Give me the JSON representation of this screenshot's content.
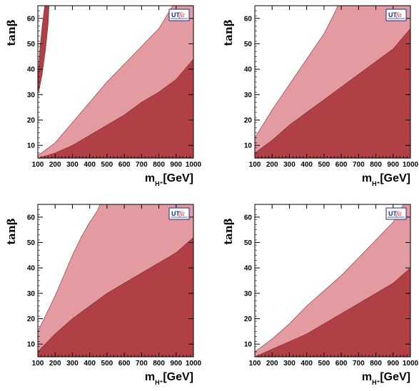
{
  "colors": {
    "light_region": "#e39aa0",
    "dark_region": "#b04046",
    "frame": "#000000",
    "logo_border": "#1a2f8c"
  },
  "logo": {
    "ut": "UT",
    "fit": "fit"
  },
  "chart_data": [
    {
      "type": "area",
      "title": "",
      "xlabel": {
        "main": "m",
        "sub": "H⁺",
        "unit": "[GeV]"
      },
      "ylabel": "tanβ",
      "xlim": [
        100,
        1000
      ],
      "ylim": [
        5,
        65
      ],
      "xticks": [
        "100",
        "200",
        "300",
        "400",
        "500",
        "600",
        "700",
        "800",
        "900",
        "1000"
      ],
      "yticks": [
        "10",
        "20",
        "30",
        "40",
        "50",
        "60"
      ],
      "regions": [
        {
          "name": "",
          "color": "light",
          "boundary": [
            [
              100,
              6
            ],
            [
              200,
              11
            ],
            [
              300,
              19
            ],
            [
              400,
              27
            ],
            [
              500,
              35
            ],
            [
              600,
              42
            ],
            [
              700,
              49
            ],
            [
              800,
              56
            ],
            [
              880,
              65
            ]
          ]
        },
        {
          "name": "",
          "color": "dark",
          "boundary": [
            [
              100,
              5
            ],
            [
              200,
              7
            ],
            [
              300,
              10
            ],
            [
              400,
              14
            ],
            [
              500,
              18
            ],
            [
              600,
              22
            ],
            [
              700,
              27
            ],
            [
              800,
              31
            ],
            [
              900,
              36
            ],
            [
              1000,
              44
            ]
          ]
        },
        {
          "name": "",
          "color": "dark_island",
          "upper_left": true,
          "boundary": [
            [
              100,
              35
            ],
            [
              110,
              47
            ],
            [
              125,
              57
            ],
            [
              140,
              65
            ],
            [
              165,
              65
            ],
            [
              160,
              58
            ],
            [
              145,
              48
            ],
            [
              125,
              38
            ],
            [
              105,
              31
            ]
          ]
        }
      ]
    },
    {
      "type": "area",
      "title": "",
      "xlabel": {
        "main": "m",
        "sub": "H⁺",
        "unit": "[GeV]"
      },
      "ylabel": "tanβ",
      "xlim": [
        100,
        1000
      ],
      "ylim": [
        5,
        65
      ],
      "xticks": [
        "100",
        "200",
        "300",
        "400",
        "500",
        "600",
        "700",
        "800",
        "900",
        "1000"
      ],
      "yticks": [
        "10",
        "20",
        "30",
        "40",
        "50",
        "60"
      ],
      "regions": [
        {
          "name": "",
          "color": "light",
          "boundary": [
            [
              100,
              13
            ],
            [
              200,
              24
            ],
            [
              300,
              34
            ],
            [
              400,
              44
            ],
            [
              500,
              54
            ],
            [
              560,
              62
            ],
            [
              580,
              65
            ]
          ]
        },
        {
          "name": "",
          "color": "dark",
          "boundary": [
            [
              100,
              7
            ],
            [
              200,
              12
            ],
            [
              300,
              18
            ],
            [
              400,
              23
            ],
            [
              500,
              28
            ],
            [
              600,
              33
            ],
            [
              700,
              38
            ],
            [
              800,
              43
            ],
            [
              900,
              48
            ],
            [
              1000,
              56
            ]
          ]
        }
      ]
    },
    {
      "type": "area",
      "title": "",
      "xlabel": {
        "main": "m",
        "sub": "H⁺",
        "unit": "[GeV]"
      },
      "ylabel": "tanβ",
      "xlim": [
        100,
        1000
      ],
      "ylim": [
        5,
        65
      ],
      "xticks": [
        "100",
        "200",
        "300",
        "400",
        "500",
        "600",
        "700",
        "800",
        "900",
        "1000"
      ],
      "yticks": [
        "10",
        "20",
        "30",
        "40",
        "50",
        "60"
      ],
      "regions": [
        {
          "name": "",
          "color": "light",
          "boundary": [
            [
              100,
              15
            ],
            [
              150,
              22
            ],
            [
              200,
              29
            ],
            [
              250,
              37
            ],
            [
              300,
              45
            ],
            [
              350,
              52
            ],
            [
              400,
              58
            ],
            [
              440,
              62
            ],
            [
              460,
              65
            ]
          ]
        },
        {
          "name": "",
          "color": "dark",
          "boundary": [
            [
              100,
              7
            ],
            [
              200,
              14
            ],
            [
              300,
              20
            ],
            [
              400,
              25
            ],
            [
              500,
              30
            ],
            [
              600,
              34
            ],
            [
              700,
              38
            ],
            [
              800,
              42
            ],
            [
              900,
              46
            ],
            [
              1000,
              52
            ]
          ]
        }
      ]
    },
    {
      "type": "area",
      "title": "",
      "xlabel": {
        "main": "m",
        "sub": "H⁺",
        "unit": "[GeV]"
      },
      "ylabel": "tanβ",
      "xlim": [
        100,
        1000
      ],
      "ylim": [
        5,
        65
      ],
      "xticks": [
        "100",
        "200",
        "300",
        "400",
        "500",
        "600",
        "700",
        "800",
        "900",
        "1000"
      ],
      "yticks": [
        "10",
        "20",
        "30",
        "40",
        "50",
        "60"
      ],
      "regions": [
        {
          "name": "",
          "color": "light",
          "boundary": [
            [
              100,
              7
            ],
            [
              200,
              12
            ],
            [
              300,
              18
            ],
            [
              400,
              25
            ],
            [
              500,
              31
            ],
            [
              600,
              37
            ],
            [
              700,
              44
            ],
            [
              800,
              51
            ],
            [
              900,
              58
            ],
            [
              960,
              65
            ]
          ]
        },
        {
          "name": "",
          "color": "dark",
          "boundary": [
            [
              100,
              5
            ],
            [
              200,
              8
            ],
            [
              300,
              11
            ],
            [
              400,
              14
            ],
            [
              500,
              18
            ],
            [
              600,
              22
            ],
            [
              700,
              26
            ],
            [
              800,
              30
            ],
            [
              900,
              34
            ],
            [
              1000,
              40
            ]
          ]
        }
      ]
    }
  ]
}
